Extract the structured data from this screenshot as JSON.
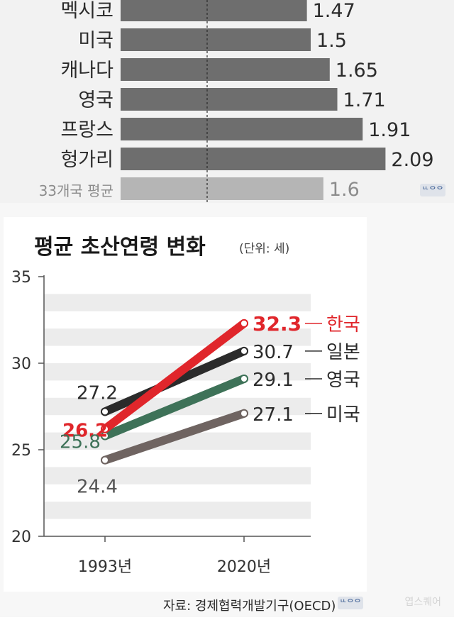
{
  "chart_data": [
    {
      "type": "bar",
      "orientation": "horizontal",
      "categories": [
        "멕시코",
        "미국",
        "캐나다",
        "영국",
        "프랑스",
        "헝가리",
        "33개국 평균"
      ],
      "values": [
        1.47,
        1.5,
        1.65,
        1.71,
        1.91,
        2.09,
        1.6
      ],
      "value_labels": [
        "1.47",
        "1.5",
        "1.65",
        "1.71",
        "1.91",
        "2.09",
        "1.6"
      ],
      "colors": {
        "bar": "#6e6e6e",
        "average_bar": "#b5b5b5",
        "label": "#2b2b2b",
        "average_label": "#8c8c8c"
      }
    },
    {
      "type": "line",
      "title": "평균 초산연령 변화",
      "unit": "(단위: 세)",
      "categories": [
        "1993년",
        "2020년"
      ],
      "ylim": [
        20,
        35
      ],
      "yticks": [
        "20",
        "25",
        "30",
        "35"
      ],
      "series": [
        {
          "name": "한국",
          "values": [
            26.2,
            32.3
          ],
          "labels": [
            "26.2",
            "32.3"
          ],
          "color": "#e0262b"
        },
        {
          "name": "일본",
          "values": [
            27.2,
            30.7
          ],
          "labels": [
            "27.2",
            "30.7"
          ],
          "color": "#2b2b2b"
        },
        {
          "name": "영국",
          "values": [
            25.8,
            29.1
          ],
          "labels": [
            "25.8",
            "29.1"
          ],
          "color": "#3e7258"
        },
        {
          "name": "미국",
          "values": [
            24.4,
            27.1
          ],
          "labels": [
            "24.4",
            "27.1"
          ],
          "color": "#6f6461"
        }
      ],
      "source": "자료: 경제협력개발기구(OECD)"
    }
  ],
  "badge_icon": "news-logo-icon"
}
